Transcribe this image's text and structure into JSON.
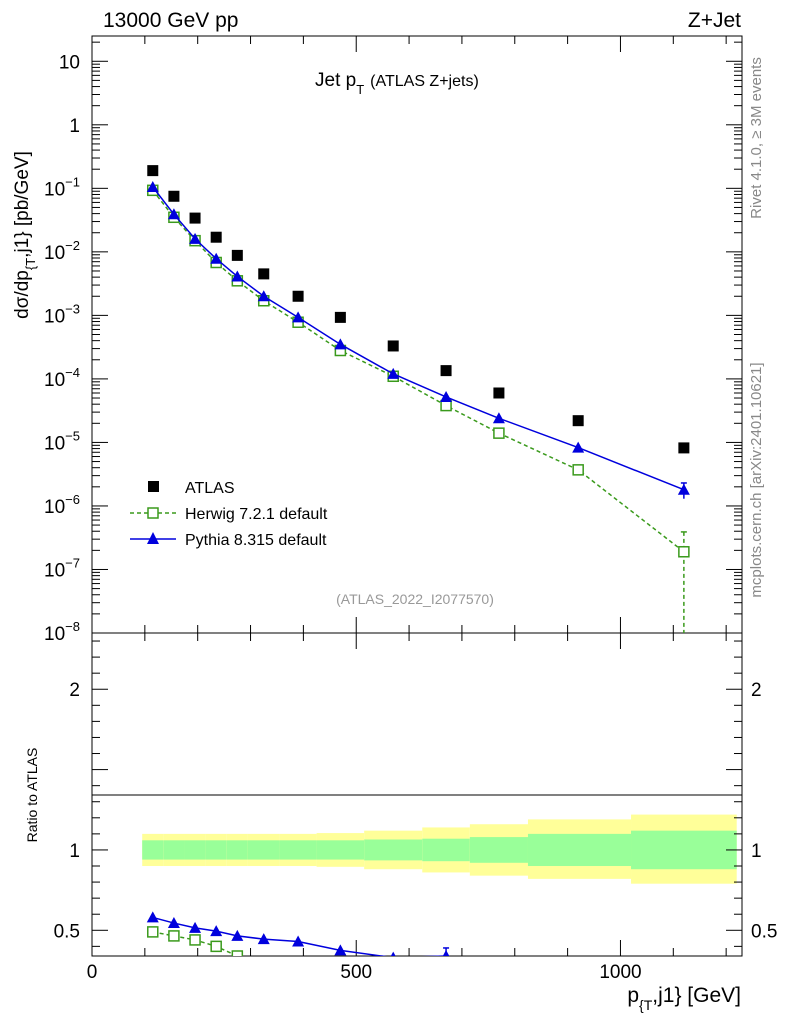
{
  "header": {
    "left": "13000 GeV pp",
    "right": "Z+Jet"
  },
  "side": {
    "top": "Rivet 4.1.0, ≥ 3M events",
    "bottom": "mcplots.cern.ch [arXiv:2401.10621]"
  },
  "colors": {
    "atlas": "#000000",
    "herwig": "#3a9a1c",
    "pythia": "#0000dd",
    "band_inner": "#99ff99",
    "band_outer": "#ffff99",
    "watermark": "#999999"
  },
  "chart_data": [
    {
      "type": "scatter",
      "panel": "main",
      "title": "Jet p_T",
      "title_main": "Jet p",
      "title_sub": "T",
      "title_suffix": "(ATLAS Z+jets)",
      "watermark": "(ATLAS_2022_I2077570)",
      "ylabel": "dσ/dp_{T},j1} [pb/GeV]",
      "ylabel_main": "dσ/dp",
      "ylabel_sub": "{T",
      "ylabel_suffix": ",j1} [pb/GeV]",
      "yscale": "log",
      "xlim": [
        0,
        1230
      ],
      "ylim": [
        1e-08,
        25
      ],
      "yticks": [
        {
          "v": 10,
          "m": "10",
          "e": ""
        },
        {
          "v": 1,
          "m": "1",
          "e": ""
        },
        {
          "v": 0.1,
          "m": "10",
          "e": "−1"
        },
        {
          "v": 0.01,
          "m": "10",
          "e": "−2"
        },
        {
          "v": 0.001,
          "m": "10",
          "e": "−3"
        },
        {
          "v": 0.0001,
          "m": "10",
          "e": "−4"
        },
        {
          "v": 1e-05,
          "m": "10",
          "e": "−5"
        },
        {
          "v": 1e-06,
          "m": "10",
          "e": "−6"
        },
        {
          "v": 1e-07,
          "m": "10",
          "e": "−7"
        },
        {
          "v": 1e-08,
          "m": "10",
          "e": "−8"
        }
      ],
      "legend": {
        "position": "bottom-left",
        "entries": [
          "ATLAS",
          "Herwig 7.2.1 default",
          "Pythia 8.315 default"
        ]
      },
      "series": [
        {
          "name": "ATLAS",
          "style": "square",
          "x": [
            115,
            155,
            195,
            235,
            275,
            325,
            390,
            470,
            570,
            670,
            770,
            920,
            1120
          ],
          "y": [
            0.19,
            0.075,
            0.034,
            0.017,
            0.0088,
            0.0045,
            0.002,
            0.00093,
            0.00033,
            0.000135,
            6e-05,
            2.2e-05,
            8.2e-06
          ]
        },
        {
          "name": "Herwig 7.2.1 default",
          "style": "open-square-dashed",
          "x": [
            115,
            155,
            195,
            235,
            275,
            325,
            390,
            470,
            570,
            670,
            770,
            920,
            1120
          ],
          "y": [
            0.093,
            0.035,
            0.015,
            0.0068,
            0.0035,
            0.0017,
            0.00078,
            0.00028,
            0.00011,
            3.8e-05,
            1.4e-05,
            3.7e-06,
            1.9e-07
          ],
          "yerr": [
            0,
            0,
            0,
            0,
            0,
            0,
            0,
            0,
            0,
            0,
            0,
            0,
            2e-07
          ]
        },
        {
          "name": "Pythia 8.315 default",
          "style": "triangle-solid",
          "x": [
            115,
            155,
            195,
            235,
            275,
            325,
            390,
            470,
            570,
            670,
            770,
            920,
            1120
          ],
          "y": [
            0.105,
            0.039,
            0.016,
            0.0078,
            0.0041,
            0.002,
            0.00093,
            0.00035,
            0.00012,
            5.2e-05,
            2.4e-05,
            8.3e-06,
            1.8e-06
          ],
          "yerr": [
            0,
            0,
            0,
            0,
            0,
            0,
            0,
            0,
            0,
            0,
            0,
            0,
            5e-07
          ]
        }
      ]
    },
    {
      "type": "line",
      "panel": "ratio",
      "ylabel": "Ratio to ATLAS",
      "xlabel": "p_{T},j1} [GeV]",
      "xlabel_main": "p",
      "xlabel_sub": "{T",
      "xlabel_suffix": ",j1} [GeV]",
      "xlim": [
        0,
        1230
      ],
      "ylim": [
        0.34,
        2.35
      ],
      "xticks": [
        0,
        500,
        1000
      ],
      "yticks": [
        0.5,
        1,
        2
      ],
      "bands": {
        "edges": [
          95,
          135,
          175,
          215,
          255,
          295,
          355,
          425,
          515,
          625,
          715,
          825,
          1020,
          1220
        ],
        "inner": [
          [
            0.94,
            1.06
          ],
          [
            0.94,
            1.06
          ],
          [
            0.94,
            1.06
          ],
          [
            0.94,
            1.06
          ],
          [
            0.94,
            1.06
          ],
          [
            0.94,
            1.06
          ],
          [
            0.94,
            1.06
          ],
          [
            0.94,
            1.06
          ],
          [
            0.935,
            1.065
          ],
          [
            0.93,
            1.07
          ],
          [
            0.92,
            1.08
          ],
          [
            0.9,
            1.1
          ],
          [
            0.88,
            1.12
          ]
        ],
        "outer": [
          [
            0.9,
            1.1
          ],
          [
            0.9,
            1.1
          ],
          [
            0.9,
            1.1
          ],
          [
            0.9,
            1.1
          ],
          [
            0.9,
            1.1
          ],
          [
            0.9,
            1.1
          ],
          [
            0.9,
            1.1
          ],
          [
            0.895,
            1.105
          ],
          [
            0.88,
            1.12
          ],
          [
            0.86,
            1.14
          ],
          [
            0.84,
            1.16
          ],
          [
            0.82,
            1.19
          ],
          [
            0.79,
            1.22
          ]
        ]
      },
      "series": [
        {
          "name": "Herwig 7.2.1 default",
          "style": "open-square-dashed",
          "x": [
            115,
            155,
            195,
            235,
            275
          ],
          "y": [
            0.49,
            0.465,
            0.44,
            0.4,
            0.34
          ]
        },
        {
          "name": "Pythia 8.315 default",
          "style": "triangle-solid",
          "x": [
            115,
            155,
            195,
            235,
            275,
            325,
            390,
            470,
            570,
            670
          ],
          "y": [
            0.58,
            0.545,
            0.515,
            0.495,
            0.465,
            0.445,
            0.43,
            0.375,
            0.33,
            0.34
          ],
          "yerr": [
            0,
            0,
            0,
            0,
            0,
            0,
            0,
            0,
            0,
            0.05
          ]
        }
      ]
    }
  ]
}
